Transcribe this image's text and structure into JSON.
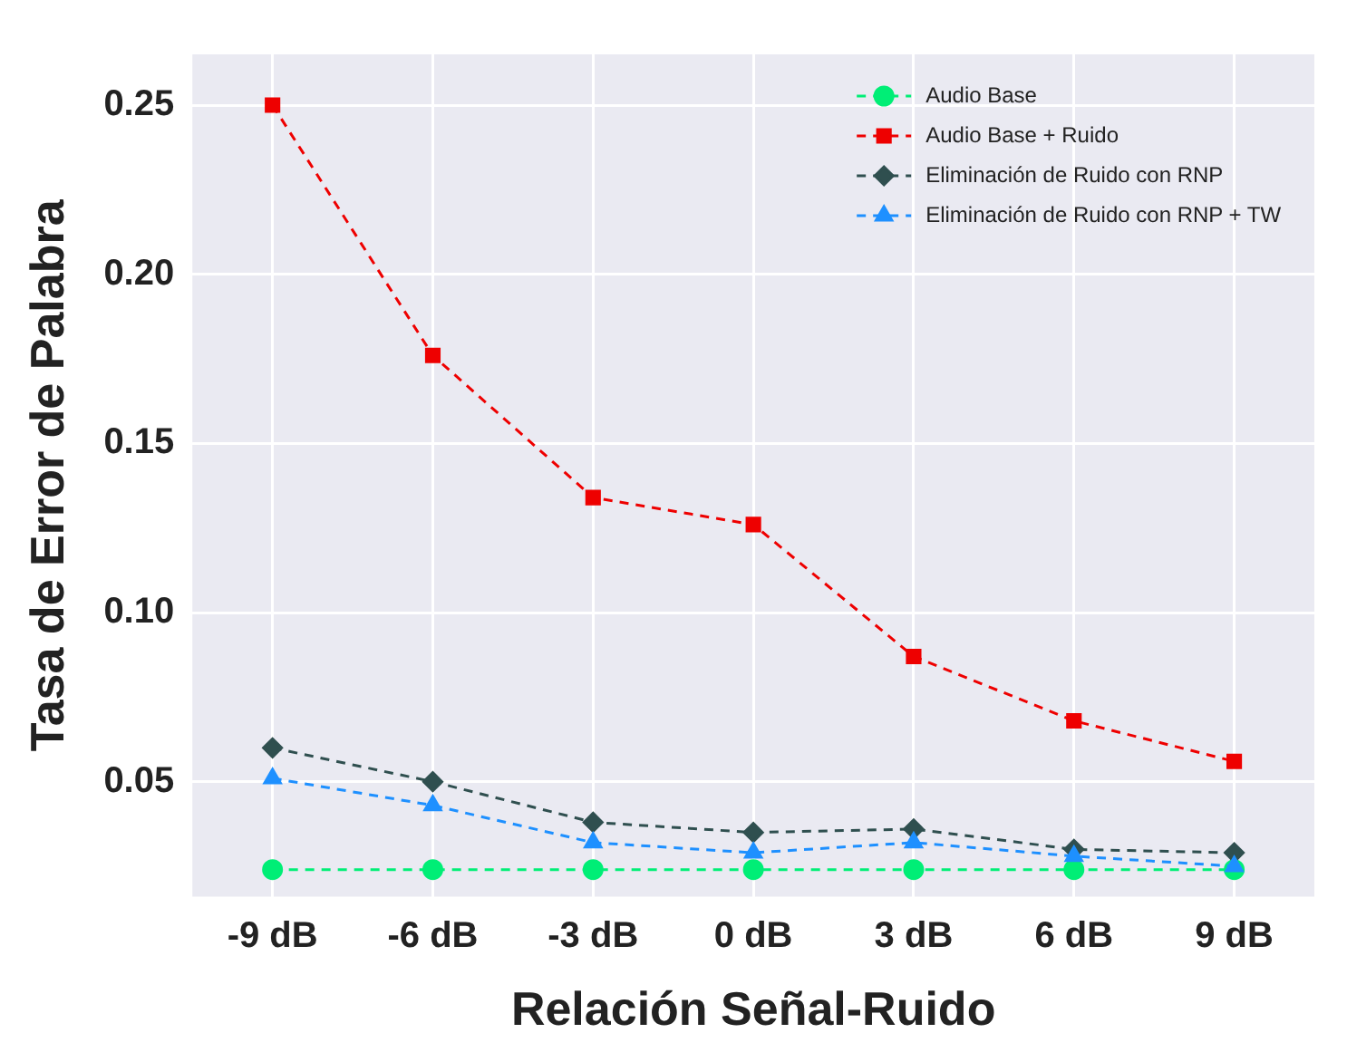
{
  "chart_data": {
    "type": "line",
    "xlabel": "Relación Señal-Ruido",
    "ylabel": "Tasa de Error de Palabra",
    "categories": [
      "-9 dB",
      "-6 dB",
      "-3 dB",
      "0 dB",
      "3 dB",
      "6 dB",
      "9 dB"
    ],
    "series": [
      {
        "name": "Audio Base",
        "color": "#00ee76",
        "marker": "circle",
        "values": [
          0.024,
          0.024,
          0.024,
          0.024,
          0.024,
          0.024,
          0.024
        ]
      },
      {
        "name": "Audio Base + Ruido",
        "color": "#ee0000",
        "marker": "square",
        "values": [
          0.25,
          0.176,
          0.134,
          0.126,
          0.087,
          0.068,
          0.056
        ]
      },
      {
        "name": "Eliminación de Ruido con RNP",
        "color": "#2f4f4f",
        "marker": "diamond",
        "values": [
          0.06,
          0.05,
          0.038,
          0.035,
          0.036,
          0.03,
          0.029
        ]
      },
      {
        "name": "Eliminación de Ruido con RNP + TW",
        "color": "#1e90ff",
        "marker": "triangle",
        "values": [
          0.051,
          0.043,
          0.032,
          0.029,
          0.032,
          0.028,
          0.025
        ]
      }
    ],
    "ylim": [
      0.016,
      0.265
    ],
    "yticks": [
      0.05,
      {
        "value": 0.1,
        "label": "0.10"
      },
      0.15,
      {
        "value": 0.2,
        "label": "0.20"
      },
      0.25
    ],
    "grid": true,
    "legend": "top right",
    "line_style": "dashed"
  }
}
